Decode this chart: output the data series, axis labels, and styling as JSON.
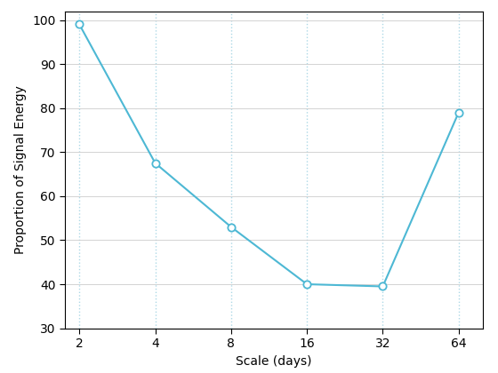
{
  "x": [
    2,
    4,
    8,
    16,
    32,
    64
  ],
  "y": [
    99,
    67.5,
    53,
    40,
    39.5,
    79
  ],
  "line_color": "#4db8d4",
  "marker": "o",
  "marker_facecolor": "white",
  "marker_edgecolor": "#4db8d4",
  "markersize": 6,
  "linewidth": 1.5,
  "xlabel": "Scale (days)",
  "ylabel": "Proportion of Signal Energy",
  "ylim": [
    30,
    102
  ],
  "yticks": [
    30,
    40,
    50,
    60,
    70,
    80,
    90,
    100
  ],
  "xticks": [
    2,
    4,
    8,
    16,
    32,
    64
  ],
  "hgrid_color": "#cccccc",
  "hgrid_linestyle": "-",
  "hgrid_linewidth": 0.6,
  "vgrid_color": "#add8e6",
  "vgrid_linestyle": ":",
  "vgrid_linewidth": 1.0,
  "background_color": "#ffffff",
  "label_fontsize": 10,
  "tick_fontsize": 10,
  "spine_color": "#000000",
  "spine_linewidth": 0.8
}
